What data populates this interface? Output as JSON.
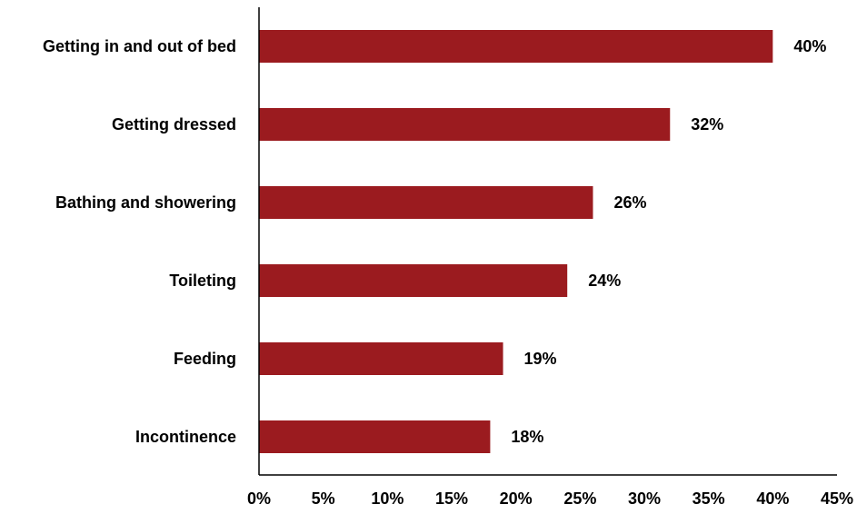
{
  "chart_data": {
    "type": "bar",
    "orientation": "horizontal",
    "categories": [
      "Getting in and out of bed",
      "Getting dressed",
      "Bathing and showering",
      "Toileting",
      "Feeding",
      "Incontinence"
    ],
    "values": [
      40,
      32,
      26,
      24,
      19,
      18
    ],
    "value_labels": [
      "40%",
      "32%",
      "26%",
      "24%",
      "19%",
      "18%"
    ],
    "xlim": [
      0,
      45
    ],
    "x_ticks": [
      0,
      5,
      10,
      15,
      20,
      25,
      30,
      35,
      40,
      45
    ],
    "x_tick_labels": [
      "0%",
      "5%",
      "10%",
      "15%",
      "20%",
      "25%",
      "30%",
      "35%",
      "40%",
      "45%"
    ],
    "title": "",
    "xlabel": "",
    "ylabel": "",
    "grid": false,
    "legend": "none",
    "bar_color": "#9b1b1f"
  }
}
